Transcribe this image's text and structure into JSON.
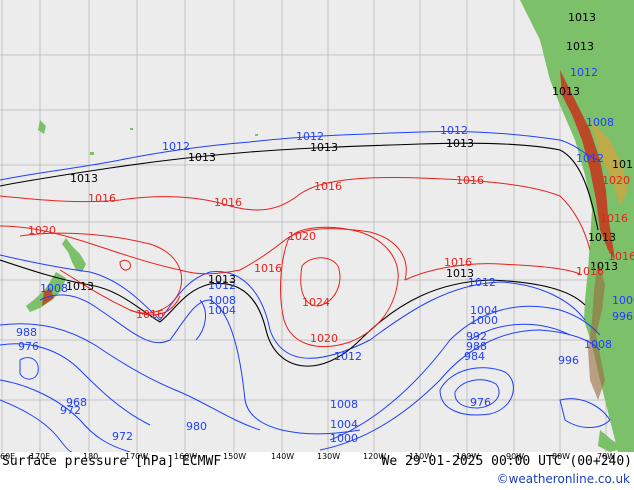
{
  "title": "Surface pressure [hPa] ECMWF",
  "timestamp": "We 29-01-2025 00:00 UTC (00+240)",
  "credit": "©weatheronline.co.uk",
  "colors": {
    "ocean": "#ececec",
    "low": "#1f3fff",
    "high": "#e8221c",
    "ref": "#000000",
    "land": "#7cc06a",
    "relief": "#c8331c"
  },
  "lon_labels": [
    "60E",
    "170E",
    "180",
    "170W",
    "160W",
    "150W",
    "140W",
    "130W",
    "120W",
    "110W",
    "100W",
    "90W",
    "80W",
    "70W"
  ],
  "isobars": {
    "blue": [
      "1012",
      "1012",
      "1012",
      "1012",
      "1012",
      "1008",
      "1004",
      "1008",
      "1012",
      "1012",
      "1004",
      "1000",
      "992",
      "988",
      "984",
      "976",
      "996",
      "1008",
      "1008",
      "1004",
      "1000",
      "988",
      "976",
      "968",
      "972",
      "972",
      "980",
      "996",
      "1000",
      "1008",
      "1012"
    ],
    "black": [
      "1013",
      "1013",
      "1013",
      "1013",
      "1013",
      "1013",
      "1013",
      "1013",
      "1013",
      "1013",
      "1013",
      "1013",
      "1013"
    ],
    "red": [
      "1016",
      "1016",
      "1016",
      "1016",
      "1016",
      "1016",
      "1016",
      "1016",
      "1020",
      "1020",
      "1020",
      "1024",
      "1020",
      "1016",
      "1016"
    ]
  }
}
